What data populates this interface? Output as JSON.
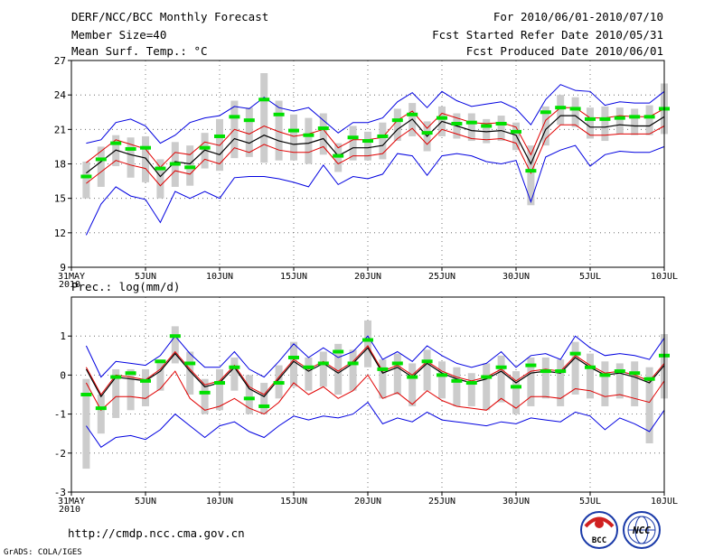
{
  "header": {
    "title": "DERF/NCC/BCC Monthly Forecast",
    "member_size": "Member Size=40",
    "for_range": "For 2010/06/01-2010/07/10",
    "started": "Fcst Started Refer Date 2010/05/31",
    "produced": "Fcst Produced Date 2010/06/01"
  },
  "footer": {
    "url": "http://cmdp.ncc.cma.gov.cn",
    "credit": "GrADS: COLA/IGES",
    "logo_bcc": "BCC",
    "logo_ncc": "NCC"
  },
  "colors": {
    "box": "#cccccc",
    "median": "#00e000",
    "mean": "#000000",
    "std": "#e00000",
    "extreme": "#0000e0"
  },
  "chart_data": [
    {
      "type": "line",
      "title": "Mean Surf. Temp.: °C",
      "xlabel": "",
      "ylabel": "Mean Surf. Temp.: °C",
      "ylim": [
        9,
        27
      ],
      "y_ticks": [
        9,
        12,
        15,
        18,
        21,
        24,
        27
      ],
      "x_range": [
        0,
        40
      ],
      "x_ticks": [
        {
          "x": 0,
          "label": "31MAY",
          "sublabel": "2010"
        },
        {
          "x": 5,
          "label": "5JUN"
        },
        {
          "x": 10,
          "label": "10JUN"
        },
        {
          "x": 15,
          "label": "15JUN"
        },
        {
          "x": 20,
          "label": "20JUN"
        },
        {
          "x": 25,
          "label": "25JUN"
        },
        {
          "x": 30,
          "label": "30JUN"
        },
        {
          "x": 35,
          "label": "5JUL"
        },
        {
          "x": 40,
          "label": "10JUL"
        }
      ],
      "grid": true,
      "days": [
        1,
        2,
        3,
        4,
        5,
        6,
        7,
        8,
        9,
        10,
        11,
        12,
        13,
        14,
        15,
        16,
        17,
        18,
        19,
        20,
        21,
        22,
        23,
        24,
        25,
        26,
        27,
        28,
        29,
        30,
        31,
        32,
        33,
        34,
        35,
        36,
        37,
        38,
        39,
        40
      ],
      "series": [
        {
          "name": "mean",
          "values": [
            17.2,
            18.2,
            19.2,
            18.8,
            18.5,
            16.9,
            18.2,
            18.0,
            19.2,
            18.8,
            20.2,
            19.8,
            20.5,
            20.0,
            19.7,
            19.8,
            20.2,
            18.7,
            19.4,
            19.4,
            19.6,
            21.0,
            21.9,
            20.4,
            21.7,
            21.3,
            20.9,
            20.8,
            20.9,
            20.5,
            18.0,
            21.0,
            22.2,
            22.2,
            21.2,
            21.2,
            21.4,
            21.3,
            21.3,
            22.1
          ]
        },
        {
          "name": "mean+std",
          "values": [
            18.1,
            19.1,
            20.1,
            19.7,
            19.3,
            17.7,
            19.0,
            18.8,
            19.9,
            19.6,
            21.0,
            20.6,
            21.3,
            20.8,
            20.4,
            20.6,
            21.0,
            19.4,
            20.1,
            20.1,
            20.3,
            21.8,
            22.6,
            21.1,
            22.4,
            22.0,
            21.6,
            21.5,
            21.6,
            21.2,
            18.8,
            21.8,
            22.9,
            22.9,
            22.0,
            22.0,
            22.2,
            22.1,
            22.1,
            22.8
          ]
        },
        {
          "name": "mean-std",
          "values": [
            16.3,
            17.3,
            18.3,
            17.9,
            17.6,
            16.1,
            17.4,
            17.1,
            18.4,
            18.0,
            19.4,
            19.0,
            19.7,
            19.2,
            19.0,
            19.0,
            19.5,
            18.0,
            18.7,
            18.7,
            18.9,
            20.2,
            21.1,
            19.7,
            21.0,
            20.6,
            20.2,
            20.1,
            20.2,
            19.8,
            17.2,
            20.2,
            21.4,
            21.4,
            20.5,
            20.5,
            20.6,
            20.6,
            20.6,
            21.3
          ]
        },
        {
          "name": "max",
          "values": [
            19.8,
            20.1,
            21.6,
            21.9,
            21.3,
            19.8,
            20.5,
            21.6,
            22.0,
            22.2,
            23.0,
            22.8,
            23.8,
            22.9,
            22.6,
            22.9,
            21.8,
            20.7,
            21.6,
            21.6,
            22.0,
            23.4,
            24.2,
            22.9,
            24.3,
            23.5,
            23.0,
            23.2,
            23.4,
            22.8,
            21.4,
            23.6,
            24.9,
            24.4,
            24.3,
            23.1,
            23.4,
            23.3,
            23.3,
            24.3
          ]
        },
        {
          "name": "min",
          "values": [
            11.8,
            14.5,
            16.0,
            15.2,
            14.9,
            12.9,
            15.6,
            15.0,
            15.6,
            15.0,
            16.8,
            16.9,
            16.9,
            16.7,
            16.4,
            16.0,
            17.9,
            16.2,
            16.9,
            16.7,
            17.1,
            18.9,
            18.7,
            17.0,
            18.7,
            18.9,
            18.7,
            18.2,
            18.0,
            18.3,
            14.7,
            18.6,
            19.2,
            19.6,
            17.8,
            18.8,
            19.1,
            19.0,
            19.0,
            19.5
          ]
        },
        {
          "name": "median",
          "values": [
            16.9,
            18.4,
            19.8,
            19.3,
            19.4,
            17.6,
            18.0,
            17.7,
            19.4,
            20.4,
            22.1,
            21.8,
            23.6,
            22.3,
            20.9,
            20.5,
            21.1,
            18.7,
            20.3,
            20.0,
            20.4,
            21.8,
            22.3,
            20.7,
            22.0,
            21.5,
            21.6,
            21.3,
            21.5,
            20.8,
            17.4,
            22.5,
            22.9,
            22.8,
            21.9,
            21.9,
            22.0,
            22.1,
            22.1,
            22.8
          ]
        },
        {
          "name": "box-upper",
          "values": [
            18.2,
            19.5,
            20.5,
            20.3,
            20.4,
            18.4,
            19.9,
            19.6,
            20.7,
            21.9,
            23.5,
            22.9,
            25.9,
            23.5,
            22.3,
            22.0,
            22.4,
            19.8,
            21.3,
            20.8,
            21.6,
            22.8,
            23.3,
            21.7,
            23.0,
            22.4,
            22.4,
            21.9,
            22.2,
            21.6,
            19.6,
            23.0,
            24.0,
            23.8,
            22.9,
            23.0,
            22.9,
            22.8,
            23.1,
            25.0
          ]
        },
        {
          "name": "box-lower",
          "values": [
            15.0,
            16.0,
            17.8,
            16.8,
            16.4,
            15.0,
            16.0,
            16.1,
            17.6,
            17.4,
            18.5,
            18.6,
            18.1,
            18.3,
            18.3,
            18.0,
            18.8,
            17.3,
            18.3,
            18.3,
            18.4,
            20.0,
            20.4,
            19.1,
            20.4,
            20.2,
            20.0,
            19.8,
            20.0,
            19.2,
            14.4,
            19.6,
            21.4,
            21.2,
            20.2,
            20.0,
            20.6,
            20.5,
            20.5,
            20.6
          ]
        }
      ]
    },
    {
      "type": "line",
      "title": "Prec.: log(mm/d)",
      "xlabel": "",
      "ylabel": "Prec.: log(mm/d)",
      "ylim": [
        -3,
        2
      ],
      "y_ticks": [
        -3,
        -2,
        -1,
        0,
        1
      ],
      "x_range": [
        0,
        40
      ],
      "x_ticks": [
        {
          "x": 0,
          "label": "31MAY",
          "sublabel": "2010"
        },
        {
          "x": 5,
          "label": "5JUN"
        },
        {
          "x": 10,
          "label": "10JUN"
        },
        {
          "x": 15,
          "label": "15JUN"
        },
        {
          "x": 20,
          "label": "20JUN"
        },
        {
          "x": 25,
          "label": "25JUN"
        },
        {
          "x": 30,
          "label": "30JUN"
        },
        {
          "x": 35,
          "label": "5JUL"
        },
        {
          "x": 40,
          "label": "10JUL"
        }
      ],
      "grid": true,
      "days": [
        1,
        2,
        3,
        4,
        5,
        6,
        7,
        8,
        9,
        10,
        11,
        12,
        13,
        14,
        15,
        16,
        17,
        18,
        19,
        20,
        21,
        22,
        23,
        24,
        25,
        26,
        27,
        28,
        29,
        30,
        31,
        32,
        33,
        34,
        35,
        36,
        37,
        38,
        39,
        40
      ],
      "series": [
        {
          "name": "mean",
          "values": [
            0.15,
            -0.55,
            -0.05,
            -0.1,
            -0.15,
            0.1,
            0.55,
            0.1,
            -0.3,
            -0.2,
            0.2,
            -0.35,
            -0.55,
            -0.1,
            0.35,
            0.1,
            0.3,
            0.05,
            0.3,
            0.7,
            0.05,
            0.2,
            -0.05,
            0.3,
            0.05,
            -0.1,
            -0.2,
            -0.1,
            0.1,
            -0.2,
            0.05,
            0.1,
            0.05,
            0.45,
            0.2,
            0.0,
            0.05,
            -0.05,
            -0.2,
            0.25
          ]
        },
        {
          "name": "mean+std",
          "values": [
            0.2,
            -0.5,
            0.0,
            -0.05,
            -0.12,
            0.15,
            0.6,
            0.15,
            -0.25,
            -0.15,
            0.25,
            -0.3,
            -0.5,
            -0.05,
            0.4,
            0.15,
            0.35,
            0.1,
            0.35,
            0.75,
            0.1,
            0.25,
            0.0,
            0.35,
            0.1,
            -0.05,
            -0.15,
            -0.05,
            0.15,
            -0.15,
            0.1,
            0.15,
            0.1,
            0.5,
            0.25,
            0.05,
            0.1,
            0.0,
            -0.15,
            0.3
          ]
        },
        {
          "name": "mean-std",
          "values": [
            -0.2,
            -0.9,
            -0.55,
            -0.55,
            -0.6,
            -0.35,
            0.1,
            -0.6,
            -0.9,
            -0.8,
            -0.6,
            -0.85,
            -1.0,
            -0.7,
            -0.2,
            -0.5,
            -0.3,
            -0.6,
            -0.4,
            0.0,
            -0.6,
            -0.45,
            -0.75,
            -0.4,
            -0.65,
            -0.8,
            -0.85,
            -0.9,
            -0.6,
            -0.85,
            -0.55,
            -0.55,
            -0.6,
            -0.35,
            -0.4,
            -0.55,
            -0.5,
            -0.6,
            -0.7,
            -0.15
          ]
        },
        {
          "name": "max",
          "values": [
            0.75,
            -0.05,
            0.35,
            0.3,
            0.25,
            0.5,
            1.0,
            0.55,
            0.2,
            0.2,
            0.6,
            0.15,
            -0.05,
            0.35,
            0.8,
            0.45,
            0.7,
            0.45,
            0.6,
            1.0,
            0.4,
            0.6,
            0.35,
            0.75,
            0.5,
            0.3,
            0.2,
            0.3,
            0.6,
            0.2,
            0.5,
            0.55,
            0.4,
            1.0,
            0.7,
            0.5,
            0.55,
            0.5,
            0.4,
            0.95
          ]
        },
        {
          "name": "min",
          "values": [
            -1.3,
            -1.85,
            -1.6,
            -1.55,
            -1.65,
            -1.4,
            -1.0,
            -1.3,
            -1.6,
            -1.3,
            -1.2,
            -1.45,
            -1.6,
            -1.3,
            -1.05,
            -1.15,
            -1.05,
            -1.1,
            -1.0,
            -0.7,
            -1.25,
            -1.1,
            -1.2,
            -0.95,
            -1.15,
            -1.2,
            -1.25,
            -1.3,
            -1.2,
            -1.25,
            -1.1,
            -1.15,
            -1.2,
            -0.95,
            -1.05,
            -1.4,
            -1.1,
            -1.25,
            -1.45,
            -0.9
          ]
        },
        {
          "name": "median",
          "values": [
            -0.5,
            -0.85,
            -0.05,
            0.05,
            -0.15,
            0.35,
            1.0,
            0.3,
            -0.45,
            -0.2,
            0.2,
            -0.6,
            -0.8,
            -0.2,
            0.45,
            0.2,
            0.3,
            0.6,
            0.3,
            0.9,
            0.15,
            0.3,
            -0.05,
            0.35,
            0.0,
            -0.15,
            -0.2,
            -0.05,
            0.2,
            -0.3,
            0.25,
            0.1,
            0.1,
            0.55,
            0.2,
            0.0,
            0.1,
            0.05,
            -0.1,
            0.5
          ]
        },
        {
          "name": "box-upper",
          "values": [
            -0.1,
            -0.5,
            0.15,
            0.15,
            0.15,
            0.4,
            1.25,
            0.6,
            -0.1,
            0.15,
            0.45,
            0.0,
            -0.2,
            0.25,
            0.85,
            0.45,
            0.6,
            0.8,
            0.65,
            1.4,
            0.4,
            0.55,
            0.3,
            0.65,
            0.35,
            0.2,
            0.05,
            0.3,
            0.5,
            0.1,
            0.45,
            0.45,
            0.4,
            0.85,
            0.55,
            0.35,
            0.3,
            0.35,
            0.2,
            1.05
          ]
        },
        {
          "name": "box-lower",
          "values": [
            -2.4,
            -1.5,
            -1.1,
            -0.9,
            -0.8,
            -0.4,
            0.3,
            -0.5,
            -1.0,
            -0.9,
            -0.4,
            -1.0,
            -1.0,
            -0.6,
            -0.3,
            -0.4,
            -0.3,
            -0.5,
            -0.4,
            0.2,
            -0.6,
            -0.5,
            -0.8,
            -0.4,
            -0.6,
            -0.8,
            -0.8,
            -0.9,
            -0.7,
            -1.0,
            -0.8,
            -0.6,
            -0.8,
            -0.5,
            -0.6,
            -0.8,
            -0.6,
            -0.8,
            -1.75,
            -0.6
          ]
        }
      ]
    }
  ]
}
